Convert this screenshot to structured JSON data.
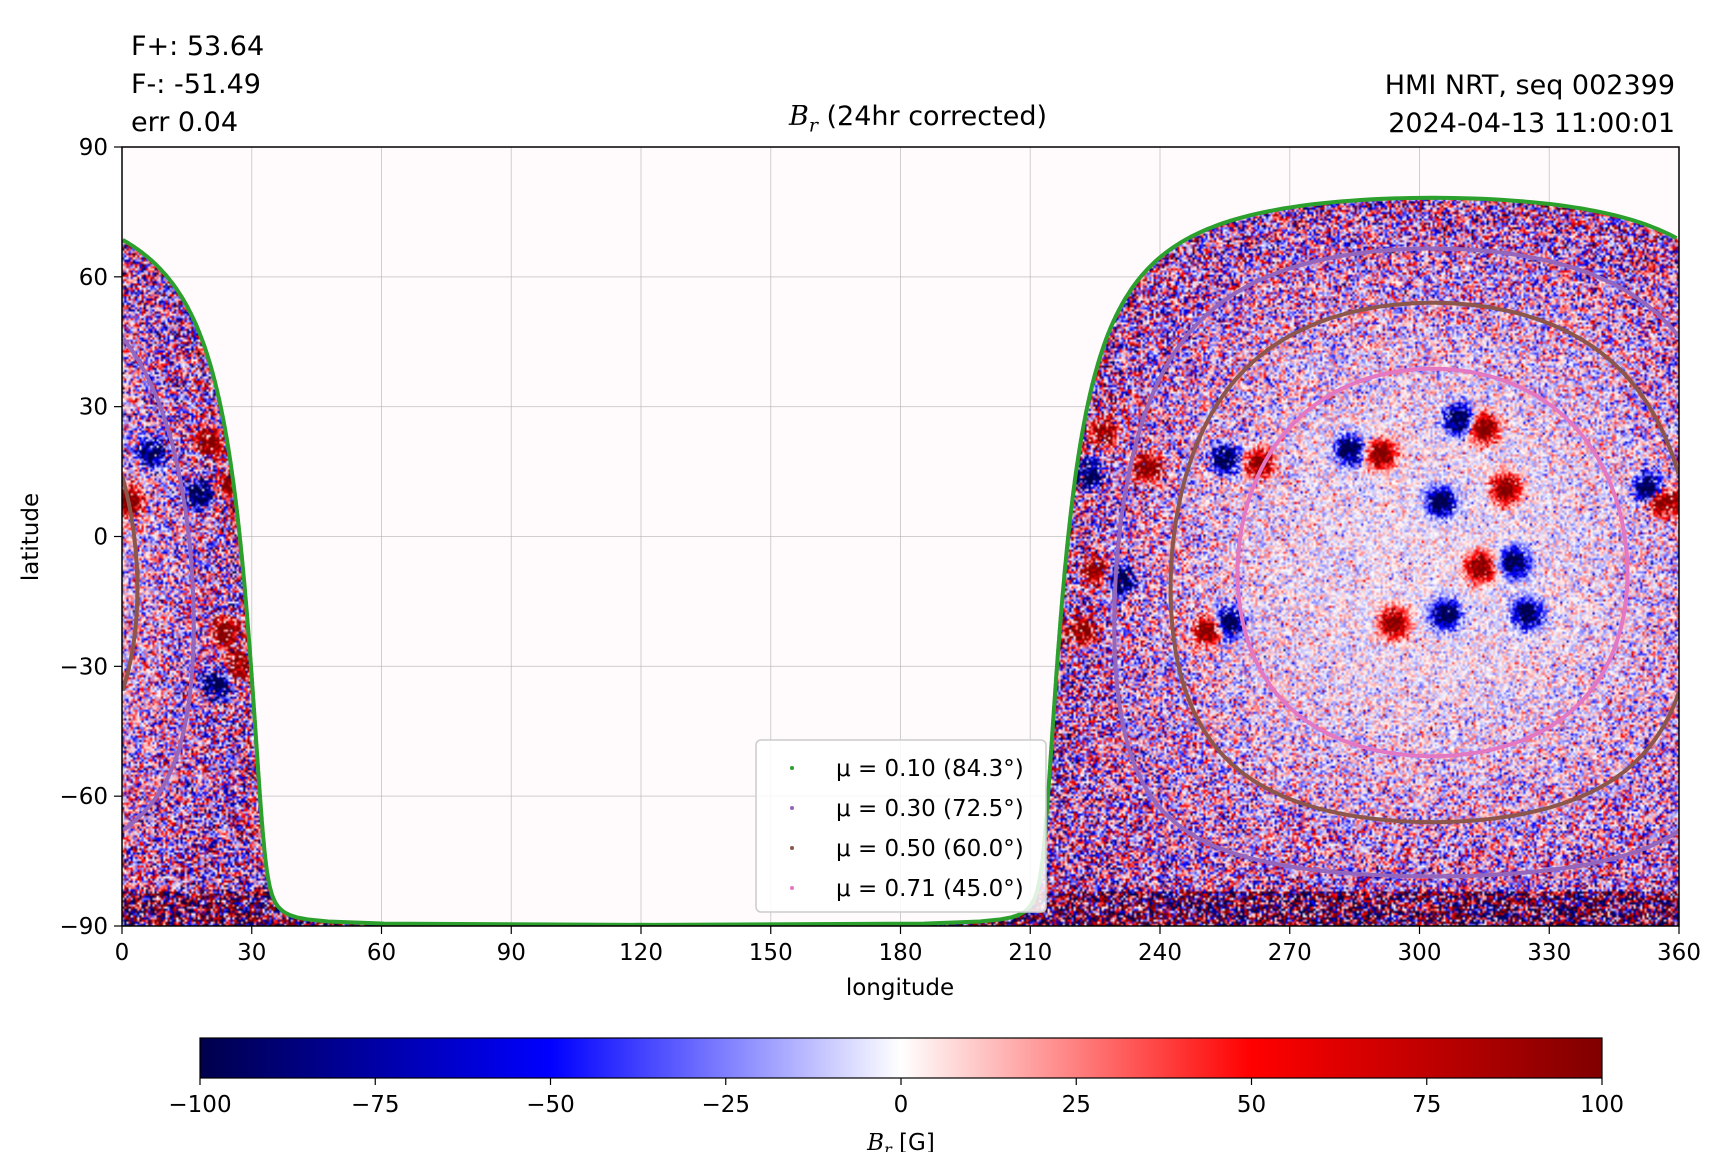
{
  "stats": {
    "flux_pos": "F+: 53.64",
    "flux_neg": "F-: -51.49",
    "error": "err 0.04"
  },
  "header": {
    "source": "HMI NRT, seq 002399",
    "timestamp": "2024-04-13 11:00:01",
    "title_symbol": "B",
    "title_sub": "r",
    "title_text": " (24hr corrected)"
  },
  "chart_data": {
    "type": "heatmap",
    "title": "B_r (24hr corrected)",
    "xlabel": "longitude",
    "ylabel": "latitude",
    "xlim": [
      0,
      360
    ],
    "ylim": [
      -90,
      90
    ],
    "xticks": [
      0,
      30,
      60,
      90,
      120,
      150,
      180,
      210,
      240,
      270,
      300,
      330,
      360
    ],
    "yticks": [
      -90,
      -60,
      -30,
      0,
      30,
      60,
      90
    ],
    "ytick_labels": [
      "−90",
      "−60",
      "−30",
      "0",
      "30",
      "60",
      "90"
    ],
    "grid": true,
    "disk_center_lon": 303,
    "disk_center_lat": -6,
    "colorbar": {
      "label_symbol": "B",
      "label_sub": "r",
      "label_unit": " [G]",
      "range": [
        -100,
        100
      ],
      "ticks": [
        -100,
        -75,
        -50,
        -25,
        0,
        25,
        50,
        75,
        100
      ],
      "tick_labels": [
        "−100",
        "−75",
        "−50",
        "−25",
        "0",
        "25",
        "50",
        "75",
        "100"
      ],
      "colors": [
        "#00004c",
        "#0000ff",
        "#ffffff",
        "#ff0000",
        "#800000"
      ]
    },
    "contours": [
      {
        "mu": 0.1,
        "angle": 84.3,
        "label": "μ = 0.10 (84.3°)",
        "color": "#2ca02c"
      },
      {
        "mu": 0.3,
        "angle": 72.5,
        "label": "μ = 0.30 (72.5°)",
        "color": "#9467bd"
      },
      {
        "mu": 0.5,
        "angle": 60.0,
        "label": "μ = 0.50 (60.0°)",
        "color": "#8c564b"
      },
      {
        "mu": 0.71,
        "angle": 45.0,
        "label": "μ = 0.71 (45.0°)",
        "color": "#e377c2"
      }
    ],
    "legend_position": "lower-center",
    "active_regions": [
      {
        "lon": 227,
        "lat": 24,
        "polarity": "positive"
      },
      {
        "lon": 223,
        "lat": 14,
        "polarity": "negative"
      },
      {
        "lon": 237,
        "lat": 16,
        "polarity": "positive"
      },
      {
        "lon": 255,
        "lat": 18,
        "polarity": "negative"
      },
      {
        "lon": 263,
        "lat": 17,
        "polarity": "positive"
      },
      {
        "lon": 284,
        "lat": 20,
        "polarity": "negative"
      },
      {
        "lon": 291,
        "lat": 19,
        "polarity": "positive"
      },
      {
        "lon": 309,
        "lat": 27,
        "polarity": "negative"
      },
      {
        "lon": 315,
        "lat": 25,
        "polarity": "positive"
      },
      {
        "lon": 320,
        "lat": 11,
        "polarity": "positive"
      },
      {
        "lon": 305,
        "lat": 8,
        "polarity": "negative"
      },
      {
        "lon": 225,
        "lat": -8,
        "polarity": "positive"
      },
      {
        "lon": 231,
        "lat": -10,
        "polarity": "negative"
      },
      {
        "lon": 222,
        "lat": -22,
        "polarity": "positive"
      },
      {
        "lon": 251,
        "lat": -22,
        "polarity": "positive"
      },
      {
        "lon": 256,
        "lat": -20,
        "polarity": "negative"
      },
      {
        "lon": 314,
        "lat": -7,
        "polarity": "positive"
      },
      {
        "lon": 322,
        "lat": -6,
        "polarity": "negative"
      },
      {
        "lon": 294,
        "lat": -20,
        "polarity": "positive"
      },
      {
        "lon": 306,
        "lat": -18,
        "polarity": "negative"
      },
      {
        "lon": 325,
        "lat": -18,
        "polarity": "negative"
      },
      {
        "lon": 356,
        "lat": 8,
        "polarity": "positive"
      },
      {
        "lon": 353,
        "lat": 11,
        "polarity": "negative"
      },
      {
        "lon": 20,
        "lat": 22,
        "polarity": "positive"
      },
      {
        "lon": 7,
        "lat": 19,
        "polarity": "negative"
      },
      {
        "lon": 25,
        "lat": 12,
        "polarity": "positive"
      },
      {
        "lon": 18,
        "lat": 10,
        "polarity": "negative"
      },
      {
        "lon": 2,
        "lat": 8,
        "polarity": "positive"
      },
      {
        "lon": 24,
        "lat": -22,
        "polarity": "positive"
      },
      {
        "lon": 27,
        "lat": -30,
        "polarity": "positive"
      },
      {
        "lon": 22,
        "lat": -34,
        "polarity": "negative"
      }
    ]
  }
}
